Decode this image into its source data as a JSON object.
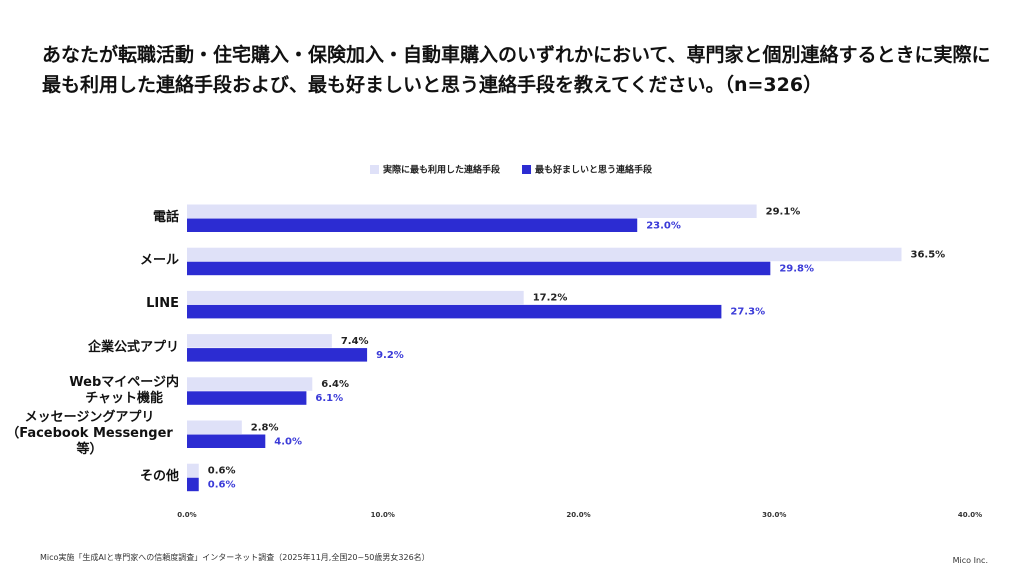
{
  "chart_data": {
    "type": "barh",
    "title": "あなたが転職活動・住宅購入・保険加入・自動車購入のいずれかにおいて、専門家と個別連絡するときに実際に最も利用した連絡手段および、最も好ましいと思う連絡手段を教えてください。（n=326）",
    "categories": [
      "電話",
      "メール",
      "LINE",
      "企業公式アプリ",
      "Webマイページ内\nチャット機能",
      "メッセージングアプリ\n（Facebook Messenger等）",
      "その他"
    ],
    "series": [
      {
        "name": "実際に最も利用した連絡手段",
        "color": "#dfe1f8",
        "label_color": "#222222",
        "values": [
          29.1,
          36.5,
          17.2,
          7.4,
          6.4,
          2.8,
          0.6
        ],
        "value_labels": [
          "29.1%",
          "36.5%",
          "17.2%",
          "7.4%",
          "6.4%",
          "2.8%",
          "0.6%"
        ]
      },
      {
        "name": "最も好ましいと思う連絡手段",
        "color": "#2c2cd2",
        "label_color": "#3b3bd8",
        "values": [
          23.0,
          29.8,
          27.3,
          9.2,
          6.1,
          4.0,
          0.6
        ],
        "value_labels": [
          "23.0%",
          "29.8%",
          "27.3%",
          "9.2%",
          "6.1%",
          "4.0%",
          "0.6%"
        ]
      }
    ],
    "xlim": [
      0,
      40
    ],
    "xticks": [
      {
        "value": 0,
        "label": "0.0%"
      },
      {
        "value": 10,
        "label": "10.0%"
      },
      {
        "value": 20,
        "label": "20.0%"
      },
      {
        "value": 30,
        "label": "30.0%"
      },
      {
        "value": 40,
        "label": "40.0%"
      }
    ],
    "grid": false,
    "legend": "top"
  },
  "footer": {
    "source": "Mico実施「生成AIと専門家への信頼度調査」インターネット調査（2025年11月,全国20~50歳男女326名）",
    "company": "Mico Inc."
  }
}
